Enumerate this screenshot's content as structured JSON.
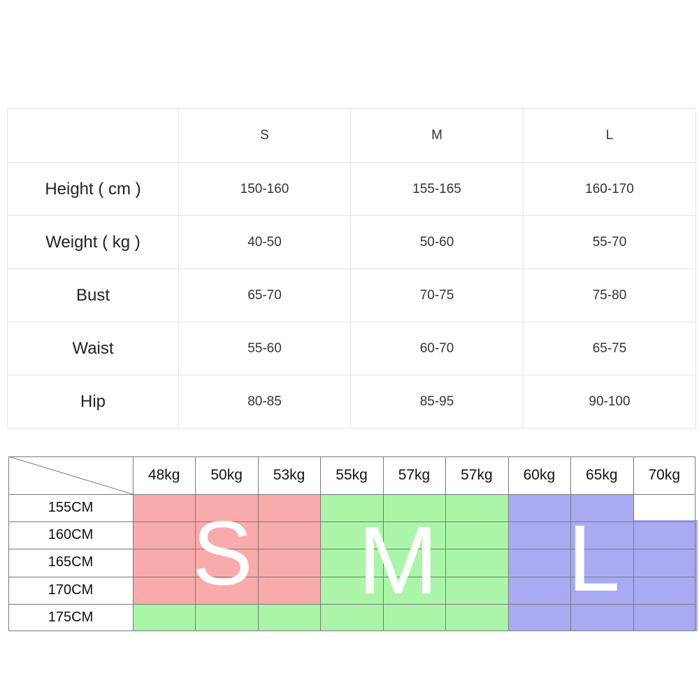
{
  "size_table": {
    "corner": "",
    "sizes": [
      "S",
      "M",
      "L"
    ],
    "rows": [
      {
        "label": "Height ( cm )",
        "values": [
          "150-160",
          "155-165",
          "160-170"
        ]
      },
      {
        "label": "Weight ( kg )",
        "values": [
          "40-50",
          "50-60",
          "55-70"
        ]
      },
      {
        "label": "Bust",
        "values": [
          "65-70",
          "70-75",
          "75-80"
        ]
      },
      {
        "label": "Waist",
        "values": [
          "55-60",
          "60-70",
          "65-75"
        ]
      },
      {
        "label": "Hip",
        "values": [
          "80-85",
          "85-95",
          "90-100"
        ]
      }
    ]
  },
  "size_grid": {
    "weights": [
      "48kg",
      "50kg",
      "53kg",
      "55kg",
      "57kg",
      "57kg",
      "60kg",
      "65kg",
      "70kg"
    ],
    "heights": [
      "155CM",
      "160CM",
      "165CM",
      "170CM",
      "175CM"
    ],
    "zone_letters": [
      "S",
      "M",
      "L"
    ],
    "colors": {
      "S": "#f9aaaa",
      "M": "#aaf5a8",
      "L": "#aaaaf3"
    }
  }
}
